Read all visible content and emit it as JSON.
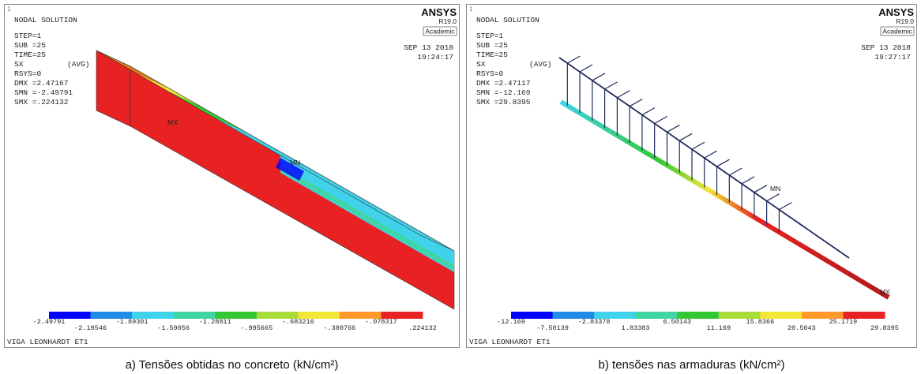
{
  "panels": [
    {
      "logo_number": "1",
      "title": "NODAL SOLUTION",
      "info": [
        "STEP=1",
        "SUB =25",
        "TIME=25",
        "SX",
        "RSYS=0",
        "DMX =2.47167",
        "SMN =-2.49791",
        "SMX =.224132"
      ],
      "avg": "(AVG)",
      "brand": "ANSYS",
      "version": "R19.0",
      "license": "Academic",
      "date": "SEP 13 2018",
      "time": "19:24:17",
      "min_marker": "MN",
      "max_marker": "MX",
      "legend_labels": [
        "-2.49791",
        "-2.19546",
        "-1.89301",
        "-1.59056",
        "-1.28811",
        "-.985665",
        "-.683216",
        "-.380766",
        "-.078317",
        ".224132"
      ],
      "legend_colors": [
        "#0000ff",
        "#1e8ce6",
        "#40d2ea",
        "#3fd6a4",
        "#33c833",
        "#a8dc38",
        "#f2e636",
        "#ff9a2a",
        "#e82222"
      ],
      "footer": "VIGA LEONHARDT ET1",
      "caption": "a) Tensões obtidas no concreto (kN/cm²)"
    },
    {
      "logo_number": "1",
      "title": "NODAL SOLUTION",
      "info": [
        "STEP=1",
        "SUB =25",
        "TIME=25",
        "SX",
        "RSYS=0",
        "DMX =2.47117",
        "SMN =-12.169",
        "SMX =29.8395"
      ],
      "avg": "(AVG)",
      "brand": "ANSYS",
      "version": "R19.0",
      "license": "Academic",
      "date": "SEP 13 2018",
      "time": "19:27:17",
      "min_marker": "MN",
      "max_marker": "MX",
      "legend_labels": [
        "-12.169",
        "-7.50139",
        "-2.83378",
        "1.83383",
        "6.50143",
        "11.169",
        "15.8366",
        "20.5043",
        "25.1719",
        "29.8395"
      ],
      "legend_colors": [
        "#0000ff",
        "#1e8ce6",
        "#40d2ea",
        "#3fd6a4",
        "#33c833",
        "#a8dc38",
        "#f2e636",
        "#ff9a2a",
        "#e82222"
      ],
      "footer": "VIGA LEONHARDT ET1",
      "caption": "b) tensões nas armaduras (kN/cm²)"
    }
  ]
}
